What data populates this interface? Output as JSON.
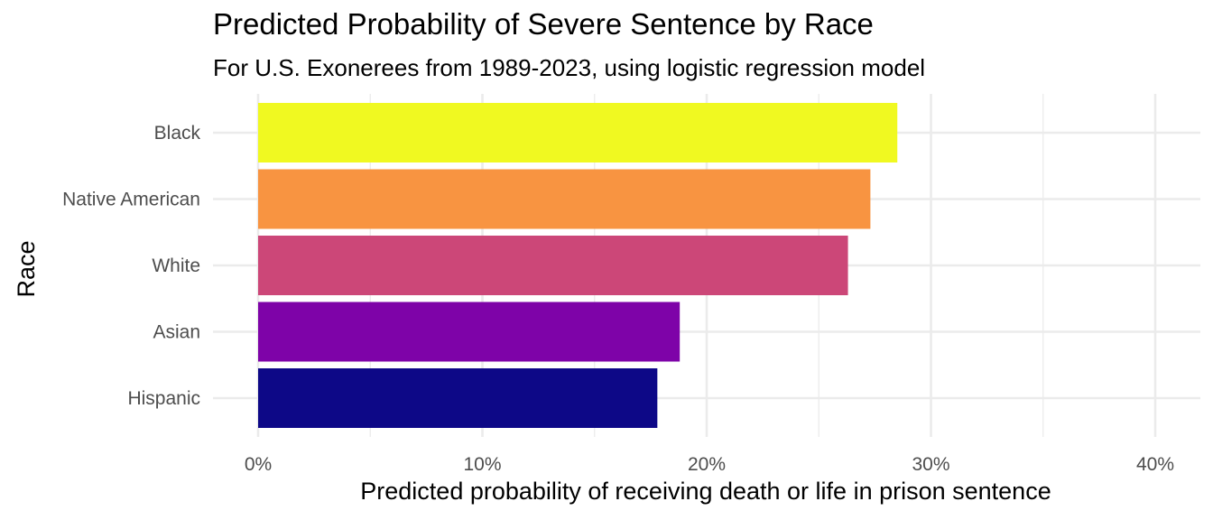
{
  "chart_data": {
    "type": "bar",
    "orientation": "horizontal",
    "title": "Predicted Probability of Severe Sentence by Race",
    "subtitle": "For U.S. Exonerees from 1989-2023, using logistic regression model",
    "xlabel": "Predicted probability of receiving death or life in prison sentence",
    "ylabel": "Race",
    "categories": [
      "Black",
      "Native American",
      "White",
      "Asian",
      "Hispanic"
    ],
    "values": [
      28.5,
      27.3,
      26.3,
      18.8,
      17.8
    ],
    "value_unit": "percent",
    "colors": [
      "#F0F921",
      "#F89441",
      "#CC4778",
      "#7E03A8",
      "#0D0887"
    ],
    "xlim": [
      0,
      40
    ],
    "xticks": [
      0,
      10,
      20,
      30,
      40
    ],
    "xtick_labels": [
      "0%",
      "10%",
      "20%",
      "30%",
      "40%"
    ],
    "grid": true,
    "legend": "none"
  }
}
